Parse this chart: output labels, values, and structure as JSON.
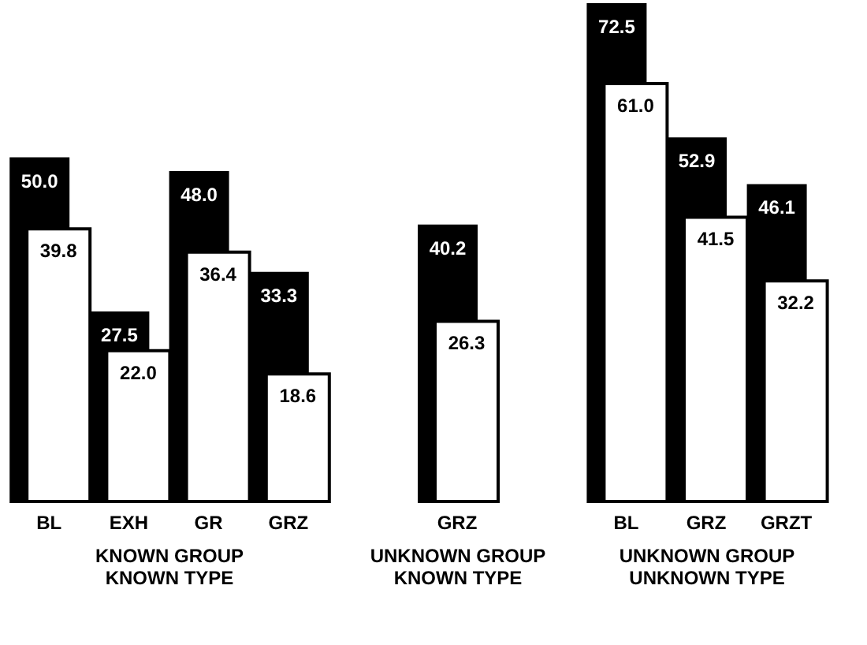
{
  "chart_data": [
    {
      "type": "bar",
      "xlabel": "KNOWN GROUP\nKNOWN TYPE",
      "categories": [
        "BL",
        "EXH",
        "GR",
        "GRZ"
      ],
      "series": [
        {
          "color": "#000000",
          "values": [
            50.0,
            27.5,
            48.0,
            33.3
          ],
          "value_labels": [
            "50.0",
            "27.5",
            "48.0",
            "33.3"
          ]
        },
        {
          "color": "#ffffff",
          "values": [
            39.8,
            22.0,
            36.4,
            18.6
          ],
          "value_labels": [
            "39.8",
            "22.0",
            "36.4",
            "18.6"
          ]
        }
      ]
    },
    {
      "type": "bar",
      "xlabel": "UNKNOWN GROUP\nKNOWN TYPE",
      "categories": [
        "GRZ"
      ],
      "series": [
        {
          "color": "#000000",
          "values": [
            40.2
          ],
          "value_labels": [
            "40.2"
          ]
        },
        {
          "color": "#ffffff",
          "values": [
            26.3
          ],
          "value_labels": [
            "26.3"
          ]
        }
      ]
    },
    {
      "type": "bar",
      "xlabel": "UNKNOWN GROUP\nUNKNOWN TYPE",
      "categories": [
        "BL",
        "GRZ",
        "GRZT"
      ],
      "series": [
        {
          "color": "#000000",
          "values": [
            72.5,
            52.9,
            46.1
          ],
          "value_labels": [
            "72.5",
            "52.9",
            "46.1"
          ]
        },
        {
          "color": "#ffffff",
          "values": [
            61.0,
            41.5,
            32.2
          ],
          "value_labels": [
            "61.0",
            "41.5",
            "32.2"
          ]
        }
      ]
    }
  ]
}
